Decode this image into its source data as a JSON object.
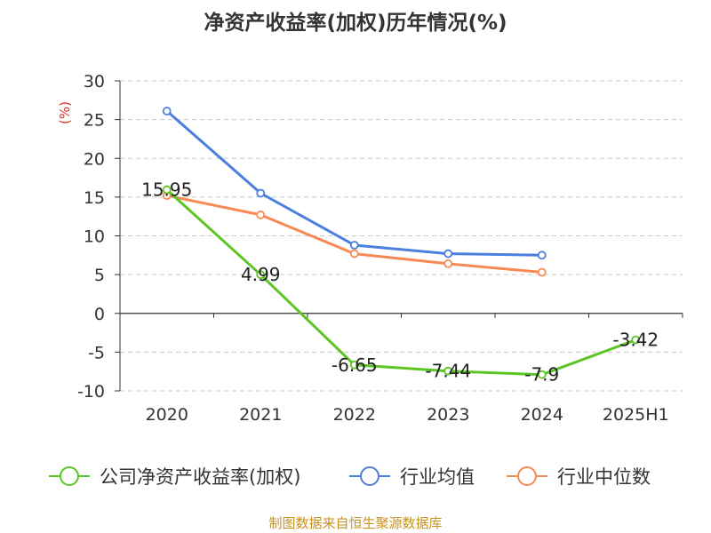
{
  "chart_data": {
    "type": "line",
    "title": "净资产收益率(加权)历年情况(%)",
    "ylabel": "(%)",
    "xlabel": "",
    "ylim": [
      -10,
      30
    ],
    "yticks": [
      -10,
      -5,
      0,
      5,
      10,
      15,
      20,
      25,
      30
    ],
    "categories": [
      "2020",
      "2021",
      "2022",
      "2023",
      "2024",
      "2025H1"
    ],
    "grid": true,
    "legend_position": "bottom",
    "series": [
      {
        "name": "公司净资产收益率(加权)",
        "color": "#5cc524",
        "values": [
          15.95,
          4.99,
          -6.65,
          -7.44,
          -7.9,
          -3.42
        ],
        "labels": [
          "15.95",
          "4.99",
          "-6.65",
          "-7.44",
          "-7.9",
          "-3.42"
        ]
      },
      {
        "name": "行业均值",
        "color": "#4a7fdf",
        "values": [
          26.1,
          15.5,
          8.8,
          7.7,
          7.5,
          null
        ]
      },
      {
        "name": "行业中位数",
        "color": "#f78a54",
        "values": [
          15.2,
          12.7,
          7.7,
          6.4,
          5.3,
          null
        ]
      }
    ]
  },
  "source": "制图数据来自恒生聚源数据库"
}
